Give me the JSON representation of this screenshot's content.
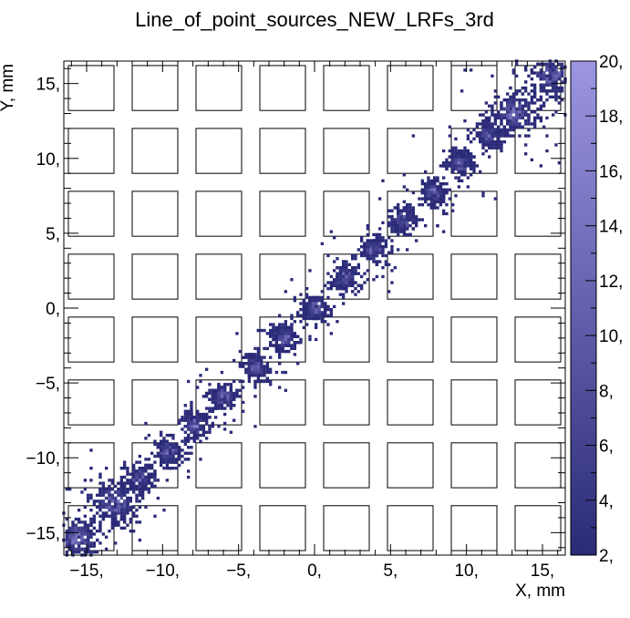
{
  "chart_data": {
    "type": "heatmap",
    "title": "Line_of_point_sources_NEW_LRFs_3rd",
    "xlabel": "X, mm",
    "ylabel": "Y, mm",
    "xlim": [
      -16.5,
      16.5
    ],
    "ylim": [
      -16.5,
      16.5
    ],
    "x_ticks": [
      {
        "value": -15,
        "label": "−15,"
      },
      {
        "value": -10,
        "label": "−10,"
      },
      {
        "value": -5,
        "label": "−5,"
      },
      {
        "value": 0,
        "label": "0,"
      },
      {
        "value": 5,
        "label": "5,"
      },
      {
        "value": 10,
        "label": "10,"
      },
      {
        "value": 15,
        "label": "15,"
      }
    ],
    "y_ticks": [
      {
        "value": -15,
        "label": "−15,"
      },
      {
        "value": -10,
        "label": "−10,"
      },
      {
        "value": -5,
        "label": "−5,"
      },
      {
        "value": 0,
        "label": "0,"
      },
      {
        "value": 5,
        "label": "5,"
      },
      {
        "value": 10,
        "label": "10,"
      },
      {
        "value": 15,
        "label": "15,"
      }
    ],
    "colorbar": {
      "range": [
        2,
        20
      ],
      "ticks": [
        {
          "value": 2,
          "label": "2,"
        },
        {
          "value": 4,
          "label": "4,"
        },
        {
          "value": 6,
          "label": "6,"
        },
        {
          "value": 8,
          "label": "8,"
        },
        {
          "value": 10,
          "label": "10,"
        },
        {
          "value": 12,
          "label": "12,"
        },
        {
          "value": 14,
          "label": "14,"
        },
        {
          "value": 16,
          "label": "16,"
        },
        {
          "value": 18,
          "label": "18,"
        },
        {
          "value": 20,
          "label": "20,"
        }
      ],
      "color_low": "#2a2a78",
      "color_high": "#9d96e2"
    },
    "point_sources": [
      {
        "x": -15.6,
        "y": -15.4
      },
      {
        "x": -13.2,
        "y": -13.0
      },
      {
        "x": -11.5,
        "y": -11.4
      },
      {
        "x": -9.6,
        "y": -9.6
      },
      {
        "x": -7.9,
        "y": -7.8
      },
      {
        "x": -6.0,
        "y": -5.9
      },
      {
        "x": -3.9,
        "y": -3.9
      },
      {
        "x": -2.0,
        "y": -2.0
      },
      {
        "x": 0.0,
        "y": 0.0
      },
      {
        "x": 2.0,
        "y": 2.0
      },
      {
        "x": 3.9,
        "y": 3.9
      },
      {
        "x": 5.9,
        "y": 5.9
      },
      {
        "x": 7.8,
        "y": 7.7
      },
      {
        "x": 9.6,
        "y": 9.6
      },
      {
        "x": 11.5,
        "y": 11.6
      },
      {
        "x": 13.2,
        "y": 13.0
      },
      {
        "x": 15.6,
        "y": 15.6
      }
    ],
    "sensor_grid": {
      "centers": [
        -14.7,
        -10.5,
        -6.3,
        -2.1,
        2.1,
        6.3,
        10.5,
        14.7
      ],
      "size": 3.0
    },
    "colors": {
      "frame": "#000000",
      "sensor_outline": "#000000",
      "background": "#ffffff"
    }
  }
}
